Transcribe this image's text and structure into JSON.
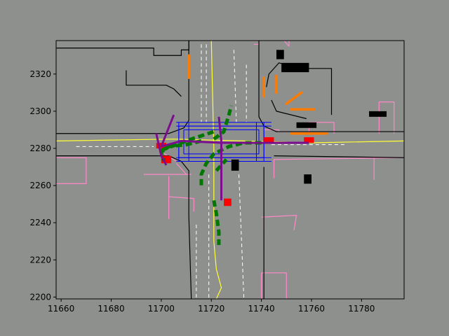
{
  "chart_data": {
    "type": "scatter",
    "title": "",
    "xlabel": "",
    "ylabel": "",
    "xlim": [
      11658,
      11797
    ],
    "ylim": [
      2199,
      2338
    ],
    "xticks": [
      11660,
      11680,
      11700,
      11720,
      11740,
      11760,
      11780
    ],
    "yticks": [
      2200,
      2220,
      2240,
      2260,
      2280,
      2300,
      2320
    ],
    "xtick_labels": [
      "11660",
      "11680",
      "11700",
      "11720",
      "11740",
      "11760",
      "11780"
    ],
    "ytick_labels": [
      "2200",
      "2220",
      "2240",
      "2260",
      "2280",
      "2300",
      "2320"
    ],
    "grid": false,
    "colors": {
      "background": "#8e908e",
      "road_edge": "#000000",
      "center_line": "#ffff33",
      "lane_dash": "#ffffff",
      "crosswalk": "#0000ff",
      "sidewalk": "#ff88c8",
      "vehicle": "#000000",
      "pedestrian": "#ff7b00",
      "ego": "#ff0000",
      "trajectory": "#007700",
      "route": "#7b0e8c"
    },
    "road_edges": [
      [
        [
          11658,
          2334
        ],
        [
          11697,
          2334
        ],
        [
          11697,
          2330
        ],
        [
          11708,
          2330
        ],
        [
          11708,
          2333
        ],
        [
          11711,
          2333
        ],
        [
          11711,
          2338
        ]
      ],
      [
        [
          11658,
          2288
        ],
        [
          11703,
          2288
        ],
        [
          11709,
          2291
        ],
        [
          11711,
          2295
        ],
        [
          11711,
          2338
        ]
      ],
      [
        [
          11686,
          2322
        ],
        [
          11686,
          2314
        ],
        [
          11702,
          2314
        ],
        [
          11705,
          2312
        ],
        [
          11708,
          2308
        ]
      ],
      [
        [
          11658,
          2276
        ],
        [
          11703,
          2276
        ],
        [
          11708,
          2273
        ],
        [
          11711,
          2268
        ],
        [
          11711,
          2244
        ],
        [
          11712,
          2199
        ]
      ],
      [
        [
          11739,
          2338
        ],
        [
          11739,
          2297
        ],
        [
          11741,
          2292
        ],
        [
          11746,
          2289
        ],
        [
          11797,
          2289
        ]
      ],
      [
        [
          11742,
          2313
        ],
        [
          11743,
          2320
        ],
        [
          11747,
          2326
        ],
        [
          11755,
          2323
        ],
        [
          11768,
          2323
        ],
        [
          11768,
          2298
        ]
      ],
      [
        [
          11744,
          2306
        ],
        [
          11746,
          2300
        ],
        [
          11758,
          2296
        ]
      ],
      [
        [
          11741,
          2270
        ],
        [
          11741,
          2199
        ]
      ],
      [
        [
          11745,
          2276
        ],
        [
          11797,
          2275
        ]
      ]
    ],
    "center_lines": [
      [
        [
          11658,
          2284
        ],
        [
          11705,
          2285
        ],
        [
          11733,
          2284
        ],
        [
          11760,
          2283
        ],
        [
          11797,
          2284
        ]
      ],
      [
        [
          11720,
          2338
        ],
        [
          11721,
          2280
        ],
        [
          11721,
          2230
        ],
        [
          11722,
          2215
        ],
        [
          11724,
          2205
        ],
        [
          11722,
          2199
        ]
      ]
    ],
    "lane_dashes": [
      [
        [
          11716,
          2336
        ],
        [
          11716,
          2294
        ]
      ],
      [
        [
          11718,
          2336
        ],
        [
          11718,
          2294
        ]
      ],
      [
        [
          11729,
          2333
        ],
        [
          11730,
          2294
        ]
      ],
      [
        [
          11734,
          2325
        ],
        [
          11734,
          2294
        ]
      ],
      [
        [
          11719,
          2266
        ],
        [
          11719,
          2199
        ]
      ],
      [
        [
          11731,
          2266
        ],
        [
          11733,
          2199
        ]
      ],
      [
        [
          11714,
          2239
        ],
        [
          11714,
          2199
        ]
      ],
      [
        [
          11666,
          2281
        ],
        [
          11697,
          2281
        ]
      ],
      [
        [
          11744,
          2282
        ],
        [
          11774,
          2282
        ]
      ]
    ],
    "crosswalks": [
      [
        [
          11707,
          2292
        ],
        [
          11741,
          2292
        ],
        [
          11741,
          2275
        ],
        [
          11707,
          2275
        ],
        [
          11707,
          2292
        ]
      ],
      [
        [
          11709,
          2290
        ],
        [
          11739,
          2290
        ],
        [
          11739,
          2277
        ],
        [
          11709,
          2277
        ],
        [
          11709,
          2290
        ]
      ],
      [
        [
          11706,
          2275
        ],
        [
          11744,
          2275
        ]
      ],
      [
        [
          11706,
          2273
        ],
        [
          11744,
          2273
        ]
      ],
      [
        [
          11706,
          2292
        ],
        [
          11744,
          2292
        ]
      ],
      [
        [
          11706,
          2294
        ],
        [
          11744,
          2294
        ]
      ],
      [
        [
          11707,
          2294
        ],
        [
          11707,
          2273
        ]
      ],
      [
        [
          11711,
          2294
        ],
        [
          11711,
          2273
        ]
      ],
      [
        [
          11738,
          2294
        ],
        [
          11738,
          2273
        ]
      ],
      [
        [
          11741,
          2294
        ],
        [
          11741,
          2273
        ]
      ]
    ],
    "sidewalks": [
      [
        [
          11658,
          2275
        ],
        [
          11670,
          2275
        ],
        [
          11670,
          2261
        ],
        [
          11658,
          2261
        ]
      ],
      [
        [
          11693,
          2266
        ],
        [
          11712,
          2266
        ]
      ],
      [
        [
          11703,
          2265
        ],
        [
          11703,
          2242
        ]
      ],
      [
        [
          11703,
          2254
        ],
        [
          11713,
          2253
        ],
        [
          11713,
          2246
        ]
      ],
      [
        [
          11706,
          2272
        ],
        [
          11710,
          2266
        ]
      ],
      [
        [
          11699,
          2279
        ],
        [
          11706,
          2273
        ]
      ],
      [
        [
          11737,
          2336
        ],
        [
          11739,
          2336
        ],
        [
          11739,
          2340
        ],
        [
          11748,
          2340
        ],
        [
          11749,
          2338
        ],
        [
          11751,
          2335
        ],
        [
          11751,
          2338
        ]
      ],
      [
        [
          11741,
          2290
        ],
        [
          11747,
          2290
        ],
        [
          11747,
          2289
        ],
        [
          11759,
          2289
        ],
        [
          11759,
          2294
        ],
        [
          11769,
          2294
        ],
        [
          11769,
          2288
        ]
      ],
      [
        [
          11745,
          2264
        ],
        [
          11745,
          2274
        ],
        [
          11797,
          2275
        ]
      ],
      [
        [
          11785,
          2263
        ],
        [
          11785,
          2275
        ]
      ],
      [
        [
          11787,
          2288
        ],
        [
          11787,
          2305
        ],
        [
          11793,
          2305
        ],
        [
          11793,
          2288
        ]
      ],
      [
        [
          11740,
          2243
        ],
        [
          11754,
          2244
        ],
        [
          11753,
          2236
        ]
      ],
      [
        [
          11741,
          2236
        ],
        [
          11741,
          2243
        ]
      ],
      [
        [
          11740,
          2213
        ],
        [
          11750,
          2213
        ],
        [
          11750,
          2199
        ]
      ],
      [
        [
          11740,
          2213
        ],
        [
          11740,
          2199
        ]
      ]
    ],
    "vehicles": [
      {
        "x": 11746,
        "y": 2328,
        "w": 3,
        "h": 5
      },
      {
        "x": 11748,
        "y": 2321,
        "w": 11,
        "h": 5
      },
      {
        "x": 11754,
        "y": 2291,
        "w": 8,
        "h": 3
      },
      {
        "x": 11783,
        "y": 2297,
        "w": 7,
        "h": 3
      },
      {
        "x": 11728,
        "y": 2268,
        "w": 3,
        "h": 6
      },
      {
        "x": 11757,
        "y": 2261,
        "w": 3,
        "h": 5
      }
    ],
    "pedestrian_paths": [
      [
        [
          11711,
          2330
        ],
        [
          11711,
          2318
        ]
      ],
      [
        [
          11741,
          2318
        ],
        [
          11741,
          2308
        ]
      ],
      [
        [
          11746,
          2319
        ],
        [
          11746,
          2310
        ]
      ],
      [
        [
          11750,
          2304
        ],
        [
          11756,
          2310
        ]
      ],
      [
        [
          11752,
          2301
        ],
        [
          11761,
          2301
        ]
      ],
      [
        [
          11752,
          2288
        ],
        [
          11766,
          2288
        ]
      ]
    ],
    "ego": [
      {
        "x": 11698,
        "y": 2280,
        "w": 4,
        "h": 3
      },
      {
        "x": 11700,
        "y": 2272,
        "w": 4,
        "h": 4
      },
      {
        "x": 11725,
        "y": 2249,
        "w": 3,
        "h": 4
      },
      {
        "x": 11741,
        "y": 2283,
        "w": 4,
        "h": 3
      },
      {
        "x": 11757,
        "y": 2283,
        "w": 4,
        "h": 3
      }
    ],
    "trajectories": [
      [
        [
          11721,
          2285
        ],
        [
          11725,
          2289
        ],
        [
          11727,
          2298
        ],
        [
          11728,
          2303
        ]
      ],
      [
        [
          11716,
          2284
        ],
        [
          11710,
          2282
        ],
        [
          11703,
          2281
        ],
        [
          11700,
          2278
        ],
        [
          11701,
          2273
        ]
      ],
      [
        [
          11740,
          2283
        ],
        [
          11733,
          2283
        ],
        [
          11727,
          2281
        ],
        [
          11721,
          2277
        ],
        [
          11718,
          2272
        ],
        [
          11716,
          2266
        ],
        [
          11716,
          2259
        ]
      ],
      [
        [
          11721,
          2252
        ],
        [
          11722,
          2245
        ],
        [
          11723,
          2235
        ],
        [
          11723,
          2228
        ]
      ],
      [
        [
          11700,
          2279
        ],
        [
          11712,
          2285
        ],
        [
          11721,
          2289
        ]
      ],
      [
        [
          11722,
          2268
        ],
        [
          11726,
          2274
        ]
      ]
    ],
    "route": [
      [
        [
          11698,
          2288
        ],
        [
          11700,
          2276
        ],
        [
          11702,
          2271
        ]
      ],
      [
        [
          11700,
          2281
        ],
        [
          11708,
          2284
        ],
        [
          11724,
          2283
        ],
        [
          11744,
          2283
        ],
        [
          11759,
          2283
        ]
      ],
      [
        [
          11724,
          2284
        ],
        [
          11724,
          2252
        ]
      ],
      [
        [
          11723,
          2297
        ],
        [
          11724,
          2284
        ]
      ],
      [
        [
          11700,
          2281
        ],
        [
          11705,
          2298
        ]
      ]
    ]
  }
}
